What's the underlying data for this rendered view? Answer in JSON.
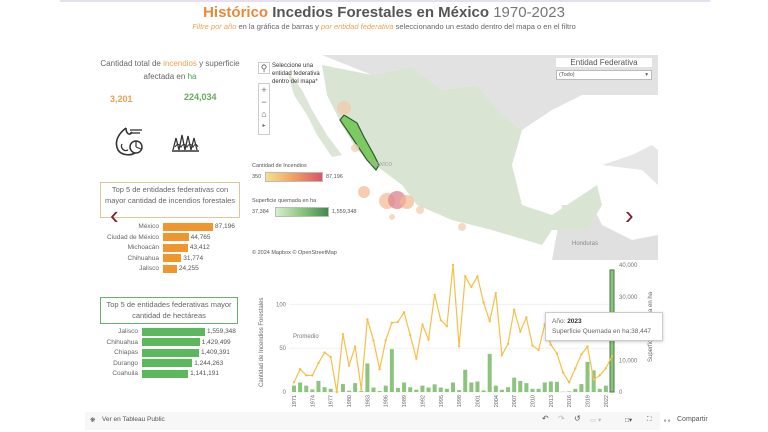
{
  "header": {
    "title_highlight": "Histórico",
    "title_main": "Incedios Forestales en México",
    "title_years": "1970-2023",
    "subtitle_a": "Filtre por año",
    "subtitle_b": " en la gráfica de barras  y ",
    "subtitle_c": "por entidad federativa",
    "subtitle_d": " seleccionando un estado dentro del mapa o en el filtro"
  },
  "kpi": {
    "title_a": "Cantidad total de ",
    "title_b": "incendios",
    "title_c": " y superficie afectada en ",
    "title_d": "ha",
    "fires": "3,201",
    "area": "224,034"
  },
  "top_fires": {
    "title": "Top 5  de entidades federativas  con mayor cantidad de incendios forestales",
    "color": "#f0962e",
    "rows": [
      {
        "label": "México",
        "value": 87196,
        "text": "87,196"
      },
      {
        "label": "Ciudad de México",
        "value": 44765,
        "text": "44,765"
      },
      {
        "label": "Michoacán",
        "value": 43412,
        "text": "43,412"
      },
      {
        "label": "Chihuahua",
        "value": 31774,
        "text": "31,774"
      },
      {
        "label": "Jalisco",
        "value": 24255,
        "text": "24,255"
      }
    ]
  },
  "top_area": {
    "title": "Top 5 de entidades federativas mayor cantidad de hectáreas",
    "color": "#5cb85c",
    "rows": [
      {
        "label": "Jalisco",
        "value": 1559348,
        "text": "1,559,348"
      },
      {
        "label": "Chihuahua",
        "value": 1429499,
        "text": "1,429,499"
      },
      {
        "label": "Chiapas",
        "value": 1409391,
        "text": "1,409,391"
      },
      {
        "label": "Durango",
        "value": 1244263,
        "text": "1,244,263"
      },
      {
        "label": "Coahuila",
        "value": 1141191,
        "text": "1,141,191"
      }
    ]
  },
  "map": {
    "hint": "Seleccione una entidad federativa dentro del mapa*",
    "country_label": "Mexico",
    "neighbor_label": "Honduras",
    "attribution": "© 2024 Mapbox  © OpenStreetMap",
    "legend_fires": {
      "title": "Cantidad de Incendios",
      "min": "350",
      "max": "87,196"
    },
    "legend_area": {
      "title": "Superficie quemada en ha",
      "min": "37,384",
      "max": "1,559,348"
    }
  },
  "filter": {
    "title": "Entidad Federativa",
    "value": "(Todo)"
  },
  "tooltip": {
    "year_label": "Año: ",
    "year": "2023",
    "area_label": "Superficie Quemada en ha:",
    "area": "38,447"
  },
  "chart_data": {
    "type": "bar+line",
    "ylabel": "Cantidad de Incendios Forestales",
    "y2label": "Superficie quemada en ha",
    "ylim": [
      0,
      145
    ],
    "y2lim": [
      0,
      40000
    ],
    "yticks": [
      "0",
      "50",
      "100"
    ],
    "y2ticks": [
      "0",
      "10,000",
      "30,000",
      "40,000"
    ],
    "annotation": "Promedio",
    "x": [
      1971,
      1972,
      1973,
      1974,
      1975,
      1976,
      1977,
      1978,
      1979,
      1980,
      1981,
      1982,
      1983,
      1984,
      1985,
      1986,
      1987,
      1988,
      1989,
      1990,
      1991,
      1992,
      1993,
      1994,
      1995,
      1996,
      1997,
      1998,
      1999,
      2000,
      2001,
      2002,
      2003,
      2004,
      2005,
      2006,
      2007,
      2008,
      2009,
      2010,
      2011,
      2012,
      2013,
      2014,
      2015,
      2016,
      2017,
      2018,
      2019,
      2020,
      2021,
      2022,
      2023
    ],
    "xticks": [
      "1971",
      "1974",
      "1977",
      "1980",
      "1983",
      "1986",
      "1989",
      "1992",
      "1995",
      "1998",
      "2001",
      "2004",
      "2007",
      "2010",
      "2013",
      "2016",
      "2019",
      "2022"
    ],
    "series": [
      {
        "name": "Cantidad de Incendios",
        "kind": "line",
        "color": "#f5c04a",
        "axis": "left",
        "values": [
          11,
          26,
          19,
          19,
          33,
          45,
          40,
          0,
          66,
          30,
          52,
          3,
          83,
          59,
          26,
          59,
          79,
          80,
          91,
          65,
          38,
          77,
          60,
          111,
          82,
          75,
          145,
          52,
          132,
          120,
          132,
          102,
          81,
          113,
          42,
          55,
          94,
          69,
          85,
          53,
          48,
          77,
          54,
          44,
          22,
          11,
          27,
          43,
          52,
          14,
          19,
          27,
          41
        ]
      },
      {
        "name": "Superficie quemada en ha",
        "kind": "bar",
        "color": "#8cc47e",
        "axis": "right",
        "values": [
          2000,
          3000,
          2000,
          800,
          3500,
          1500,
          1000,
          100,
          2500,
          400,
          2800,
          300,
          9000,
          1400,
          300,
          2000,
          13500,
          1300,
          3000,
          1500,
          700,
          2000,
          1400,
          2400,
          1400,
          1000,
          3000,
          600,
          7000,
          3000,
          3300,
          500,
          12000,
          2000,
          700,
          1500,
          4500,
          3500,
          2800,
          1000,
          1000,
          3000,
          3300,
          3200,
          100,
          200,
          1000,
          2500,
          9500,
          6800,
          1000,
          2000,
          38447
        ]
      }
    ]
  },
  "toolbar": {
    "view_public": "Ver en Tableau Public",
    "share": "Compartir"
  }
}
